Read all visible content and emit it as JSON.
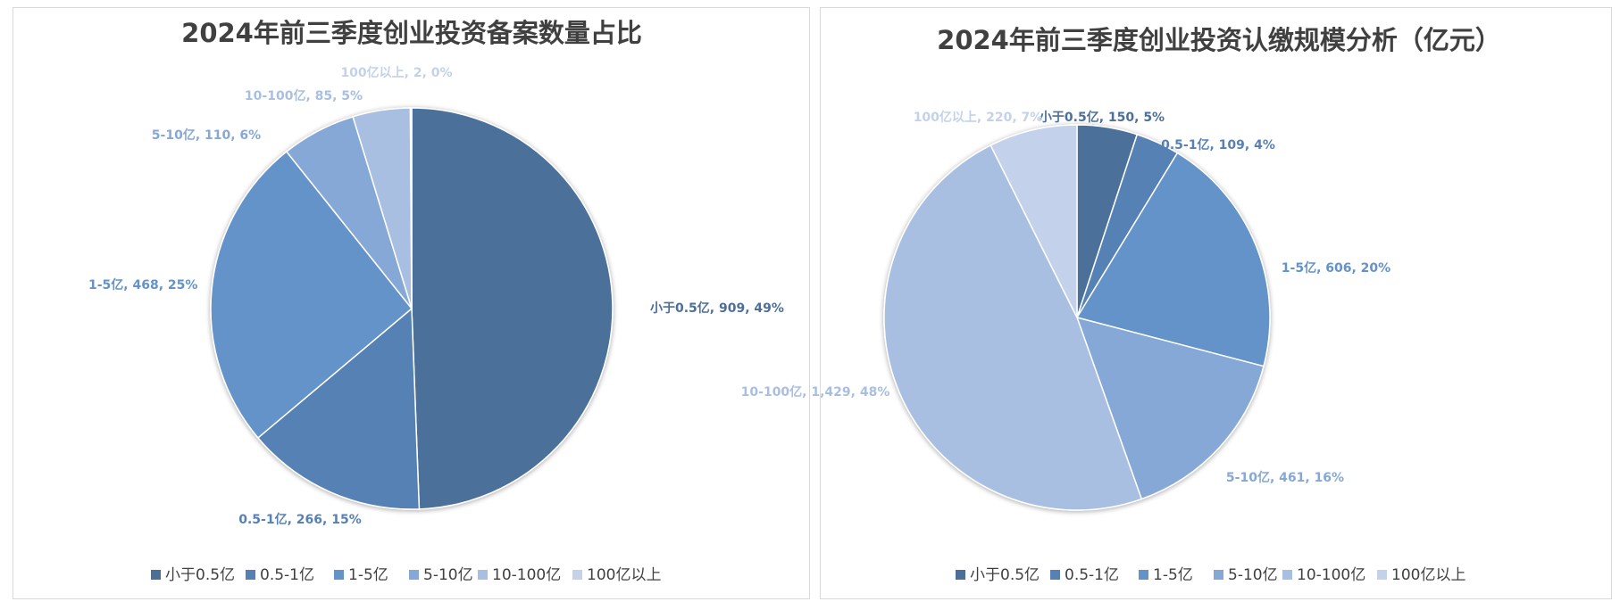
{
  "palette": [
    "#4c6f99",
    "#5781b5",
    "#6393c9",
    "#86a8d6",
    "#a9bfe2",
    "#c3d2ea"
  ],
  "chart_data": [
    {
      "type": "pie",
      "title": "2024年前三季度创业投资备案数量占比",
      "categories": [
        "小于0.5亿",
        "0.5-1亿",
        "1-5亿",
        "5-10亿",
        "10-100亿",
        "100亿以上"
      ],
      "values": [
        909,
        266,
        468,
        110,
        85,
        2
      ],
      "value_labels": [
        "909",
        "266",
        "468",
        "110",
        "85",
        "2"
      ],
      "percent_labels": [
        "49%",
        "15%",
        "25%",
        "6%",
        "5%",
        "0%"
      ],
      "legend_position": "bottom"
    },
    {
      "type": "pie",
      "title": "2024年前三季度创业投资认缴规模分析（亿元）",
      "categories": [
        "小于0.5亿",
        "0.5-1亿",
        "1-5亿",
        "5-10亿",
        "10-100亿",
        "100亿以上"
      ],
      "values": [
        150,
        109,
        606,
        461,
        1429,
        220
      ],
      "value_labels": [
        "150",
        "109",
        "606",
        "461",
        "1,429",
        "220"
      ],
      "percent_labels": [
        "5%",
        "4%",
        "20%",
        "16%",
        "48%",
        "7%"
      ],
      "legend_position": "bottom"
    }
  ]
}
